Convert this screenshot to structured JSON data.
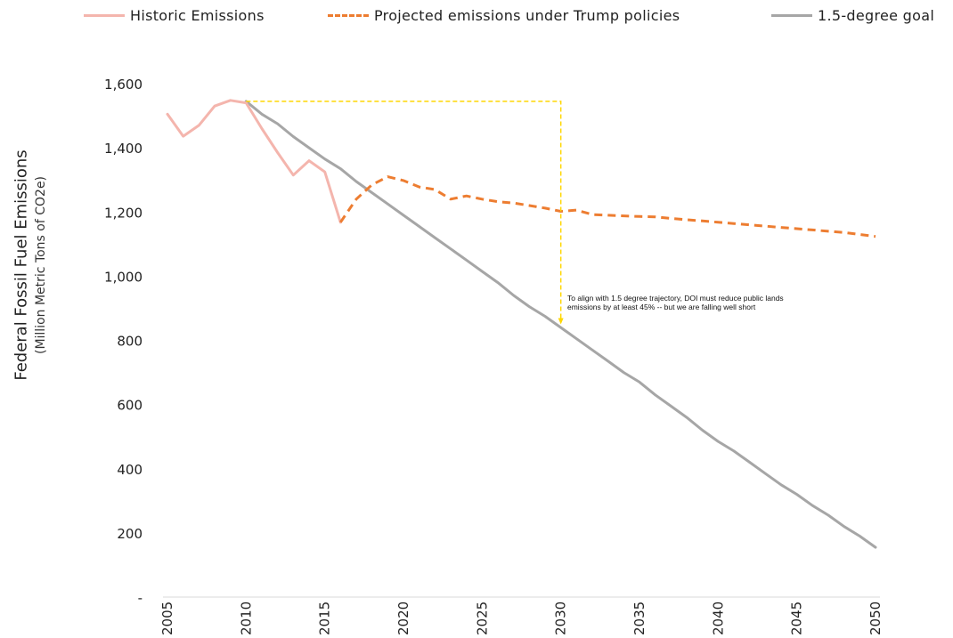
{
  "chart_data": {
    "type": "line",
    "xlabel": "",
    "ylabel": "Federal Fossil Fuel Emissions",
    "ylabel_sub": "(Million Metric Tons of CO2e)",
    "xlim": [
      2005,
      2050
    ],
    "ylim": [
      0,
      1600
    ],
    "x_ticks": [
      "2005",
      "2010",
      "2015",
      "2020",
      "2025",
      "2030",
      "2035",
      "2040",
      "2045",
      "2050"
    ],
    "y_ticks": [
      "-",
      "200",
      "400",
      "600",
      "800",
      "1,000",
      "1,200",
      "1,400",
      "1,600"
    ],
    "y_tick_values": [
      0,
      200,
      400,
      600,
      800,
      1000,
      1200,
      1400,
      1600
    ],
    "grid": false,
    "legend_position": "top",
    "series": [
      {
        "name": "Historic Emissions",
        "color": "#f4b5ad",
        "dash": "solid",
        "x": [
          2005,
          2006,
          2007,
          2008,
          2009,
          2010,
          2011,
          2012,
          2013,
          2014,
          2015,
          2016
        ],
        "values": [
          1505,
          1436,
          1470,
          1530,
          1548,
          1540,
          1460,
          1385,
          1315,
          1360,
          1325,
          1168
        ]
      },
      {
        "name": "Projected emissions under Trump policies",
        "color": "#ed7d31",
        "dash": "dashed",
        "x": [
          2016,
          2017,
          2018,
          2019,
          2020,
          2021,
          2022,
          2023,
          2024,
          2025,
          2026,
          2027,
          2028,
          2029,
          2030,
          2031,
          2032,
          2033,
          2034,
          2035,
          2036,
          2037,
          2038,
          2039,
          2040,
          2041,
          2042,
          2043,
          2044,
          2045,
          2046,
          2047,
          2048,
          2049,
          2050
        ],
        "values": [
          1168,
          1240,
          1285,
          1310,
          1298,
          1278,
          1270,
          1240,
          1250,
          1240,
          1232,
          1228,
          1220,
          1212,
          1202,
          1206,
          1192,
          1190,
          1188,
          1186,
          1185,
          1180,
          1176,
          1172,
          1168,
          1164,
          1160,
          1156,
          1152,
          1148,
          1144,
          1140,
          1136,
          1130,
          1124
        ]
      },
      {
        "name": "1.5-degree goal",
        "color": "#a6a6a6",
        "dash": "solid",
        "x": [
          2010,
          2011,
          2012,
          2013,
          2014,
          2015,
          2016,
          2017,
          2018,
          2019,
          2020,
          2021,
          2022,
          2023,
          2024,
          2025,
          2026,
          2027,
          2028,
          2029,
          2030,
          2031,
          2032,
          2033,
          2034,
          2035,
          2036,
          2037,
          2038,
          2039,
          2040,
          2041,
          2042,
          2043,
          2044,
          2045,
          2046,
          2047,
          2048,
          2049,
          2050
        ],
        "values": [
          1545,
          1505,
          1475,
          1435,
          1400,
          1365,
          1335,
          1295,
          1260,
          1225,
          1190,
          1155,
          1120,
          1085,
          1050,
          1015,
          980,
          940,
          905,
          875,
          840,
          805,
          770,
          735,
          700,
          670,
          630,
          595,
          560,
          520,
          485,
          455,
          420,
          385,
          350,
          320,
          285,
          255,
          220,
          190,
          155
        ]
      }
    ],
    "annotation": {
      "text": "To align with 1.5 degree trajectory, DOI must reduce public lands emissions by at least 45% -- but we are falling well short",
      "bracket_color": "#ffd700",
      "bracket_from": {
        "x": 2010,
        "y": 1545
      },
      "bracket_to": {
        "x": 2030,
        "y": 850
      }
    }
  }
}
